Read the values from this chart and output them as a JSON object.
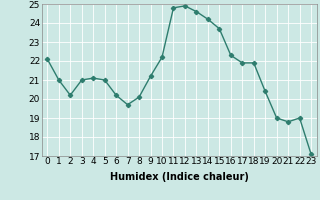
{
  "x": [
    0,
    1,
    2,
    3,
    4,
    5,
    6,
    7,
    8,
    9,
    10,
    11,
    12,
    13,
    14,
    15,
    16,
    17,
    18,
    19,
    20,
    21,
    22,
    23
  ],
  "y": [
    22.1,
    21.0,
    20.2,
    21.0,
    21.1,
    21.0,
    20.2,
    19.7,
    20.1,
    21.2,
    22.2,
    24.8,
    24.9,
    24.6,
    24.2,
    23.7,
    22.3,
    21.9,
    21.9,
    20.4,
    19.0,
    18.8,
    19.0,
    17.1
  ],
  "line_color": "#2e7d6e",
  "marker": "D",
  "markersize": 2.2,
  "linewidth": 1.0,
  "bg_color": "#cce8e4",
  "grid_color": "#ffffff",
  "xlabel": "Humidex (Indice chaleur)",
  "ylabel": "",
  "ylim": [
    17,
    25
  ],
  "xlim": [
    -0.5,
    23.5
  ],
  "yticks": [
    17,
    18,
    19,
    20,
    21,
    22,
    23,
    24,
    25
  ],
  "xticks": [
    0,
    1,
    2,
    3,
    4,
    5,
    6,
    7,
    8,
    9,
    10,
    11,
    12,
    13,
    14,
    15,
    16,
    17,
    18,
    19,
    20,
    21,
    22,
    23
  ],
  "xlabel_fontsize": 7,
  "tick_fontsize": 6.5
}
